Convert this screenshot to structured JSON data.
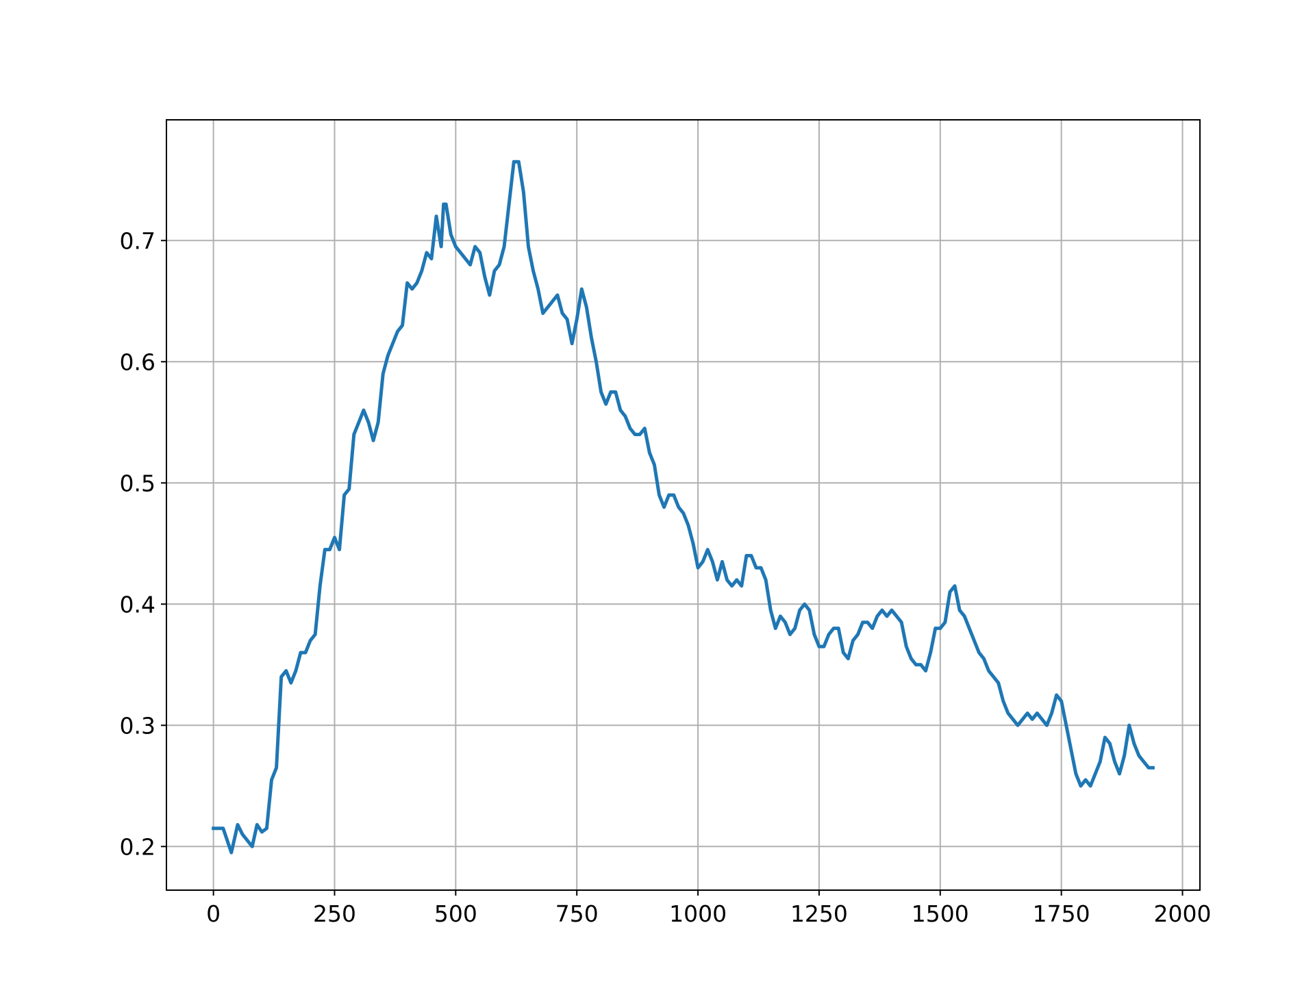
{
  "chart_data": {
    "type": "line",
    "x": [
      0,
      20,
      37,
      50,
      60,
      80,
      90,
      100,
      110,
      120,
      130,
      140,
      150,
      160,
      170,
      180,
      190,
      200,
      210,
      220,
      230,
      240,
      250,
      260,
      270,
      280,
      290,
      300,
      310,
      320,
      330,
      340,
      350,
      360,
      370,
      380,
      390,
      400,
      410,
      420,
      430,
      440,
      450,
      460,
      470,
      475,
      480,
      490,
      500,
      510,
      520,
      530,
      540,
      550,
      560,
      570,
      580,
      590,
      600,
      610,
      620,
      630,
      640,
      650,
      660,
      670,
      680,
      690,
      700,
      710,
      720,
      730,
      740,
      750,
      760,
      770,
      780,
      790,
      800,
      810,
      820,
      830,
      840,
      850,
      860,
      870,
      880,
      890,
      900,
      910,
      920,
      930,
      940,
      950,
      960,
      970,
      980,
      990,
      1000,
      1010,
      1020,
      1030,
      1040,
      1050,
      1060,
      1070,
      1080,
      1090,
      1100,
      1110,
      1120,
      1130,
      1140,
      1150,
      1160,
      1170,
      1180,
      1190,
      1200,
      1210,
      1220,
      1230,
      1240,
      1250,
      1260,
      1270,
      1280,
      1290,
      1300,
      1310,
      1320,
      1330,
      1340,
      1350,
      1360,
      1370,
      1380,
      1390,
      1400,
      1410,
      1420,
      1430,
      1440,
      1450,
      1460,
      1470,
      1480,
      1490,
      1500,
      1510,
      1520,
      1530,
      1540,
      1550,
      1560,
      1570,
      1580,
      1590,
      1600,
      1610,
      1620,
      1630,
      1640,
      1650,
      1660,
      1670,
      1680,
      1690,
      1700,
      1710,
      1720,
      1730,
      1740,
      1750,
      1760,
      1770,
      1780,
      1790,
      1800,
      1810,
      1820,
      1830,
      1840,
      1850,
      1860,
      1870,
      1880,
      1890,
      1900,
      1910,
      1920,
      1930,
      1939
    ],
    "series": [
      {
        "color": "#1f77b4",
        "values": [
          0.215,
          0.215,
          0.195,
          0.218,
          0.21,
          0.2,
          0.218,
          0.212,
          0.215,
          0.255,
          0.265,
          0.34,
          0.345,
          0.335,
          0.345,
          0.36,
          0.36,
          0.37,
          0.375,
          0.415,
          0.445,
          0.445,
          0.455,
          0.445,
          0.49,
          0.495,
          0.54,
          0.55,
          0.56,
          0.55,
          0.535,
          0.55,
          0.59,
          0.605,
          0.615,
          0.625,
          0.63,
          0.665,
          0.66,
          0.665,
          0.675,
          0.69,
          0.685,
          0.72,
          0.695,
          0.73,
          0.73,
          0.705,
          0.695,
          0.69,
          0.685,
          0.68,
          0.695,
          0.69,
          0.67,
          0.655,
          0.675,
          0.68,
          0.695,
          0.73,
          0.765,
          0.765,
          0.74,
          0.695,
          0.675,
          0.66,
          0.64,
          0.645,
          0.65,
          0.655,
          0.64,
          0.635,
          0.615,
          0.635,
          0.66,
          0.645,
          0.62,
          0.6,
          0.575,
          0.565,
          0.575,
          0.575,
          0.56,
          0.555,
          0.545,
          0.54,
          0.54,
          0.545,
          0.525,
          0.515,
          0.49,
          0.48,
          0.49,
          0.49,
          0.48,
          0.475,
          0.465,
          0.45,
          0.43,
          0.435,
          0.445,
          0.435,
          0.42,
          0.435,
          0.42,
          0.415,
          0.42,
          0.415,
          0.44,
          0.44,
          0.43,
          0.43,
          0.42,
          0.395,
          0.38,
          0.39,
          0.385,
          0.375,
          0.38,
          0.395,
          0.4,
          0.395,
          0.375,
          0.365,
          0.365,
          0.375,
          0.38,
          0.38,
          0.36,
          0.355,
          0.37,
          0.375,
          0.385,
          0.385,
          0.38,
          0.39,
          0.395,
          0.39,
          0.395,
          0.39,
          0.385,
          0.365,
          0.355,
          0.35,
          0.35,
          0.345,
          0.36,
          0.38,
          0.38,
          0.385,
          0.41,
          0.415,
          0.395,
          0.39,
          0.38,
          0.37,
          0.36,
          0.355,
          0.345,
          0.34,
          0.335,
          0.32,
          0.31,
          0.305,
          0.3,
          0.305,
          0.31,
          0.305,
          0.31,
          0.305,
          0.3,
          0.31,
          0.325,
          0.32,
          0.3,
          0.28,
          0.26,
          0.25,
          0.255,
          0.25,
          0.26,
          0.27,
          0.29,
          0.285,
          0.27,
          0.26,
          0.275,
          0.3,
          0.285,
          0.275,
          0.27,
          0.265,
          0.265
        ]
      }
    ],
    "xlim": [
      -97,
      2036
    ],
    "xticks": [
      0,
      250,
      500,
      750,
      1000,
      1250,
      1500,
      1750,
      2000
    ],
    "ylim": [
      0.164,
      0.7996
    ],
    "yticks": [
      0.2,
      0.3,
      0.4,
      0.5,
      0.6,
      0.7
    ],
    "grid": true
  }
}
